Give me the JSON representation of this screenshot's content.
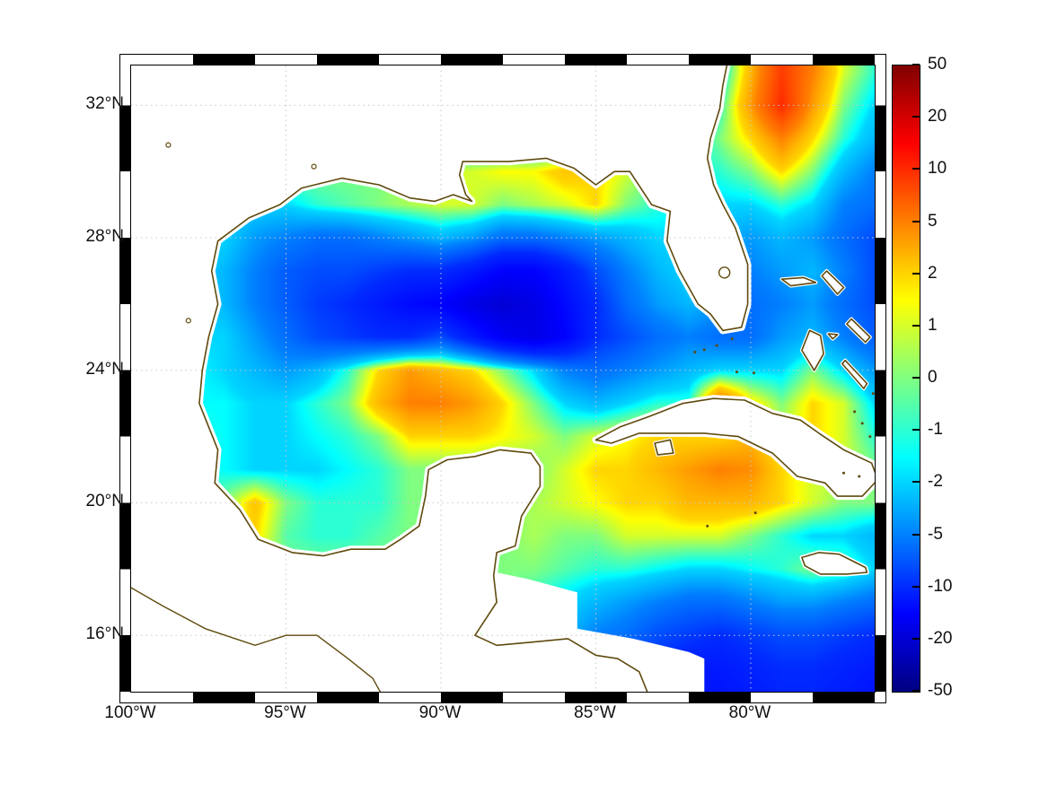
{
  "figure": {
    "background": "#ffffff",
    "coastline_color": "#5f4a0d",
    "grid_color": "#c8c8c8"
  },
  "chart_data": {
    "type": "heatmap",
    "projection": "lon-lat",
    "lon_range": [
      -100,
      -76
    ],
    "lat_range": [
      14.3,
      33.2
    ],
    "x_ticks": [
      {
        "label": "100°W",
        "lon": -100
      },
      {
        "label": "95°W",
        "lon": -95
      },
      {
        "label": "90°W",
        "lon": -90
      },
      {
        "label": "85°W",
        "lon": -85
      },
      {
        "label": "80°W",
        "lon": -80
      }
    ],
    "y_ticks": [
      {
        "label": "32°N",
        "lat": 32
      },
      {
        "label": "28°N",
        "lat": 28
      },
      {
        "label": "24°N",
        "lat": 24
      },
      {
        "label": "20°N",
        "lat": 20
      },
      {
        "label": "16°N",
        "lat": 16
      }
    ],
    "gridlines": {
      "lons": [
        -95,
        -90,
        -85,
        -80
      ],
      "lats": [
        16,
        20,
        24,
        28,
        32
      ]
    },
    "colorbar": {
      "colormap": "jet",
      "values": [
        50,
        20,
        10,
        5,
        2,
        1,
        0,
        -1,
        -2,
        -5,
        -10,
        -20,
        -50
      ],
      "labels": [
        "50",
        "20",
        "10",
        "5",
        "2",
        "1",
        "0",
        "-1",
        "-2",
        "-5",
        "-10",
        "-20",
        "-50"
      ]
    },
    "grid": {
      "lon_start": -100,
      "lon_step": 1,
      "lat_start": 33,
      "lat_step": -1,
      "values": [
        [
          -3,
          -3,
          -3,
          -3,
          -3,
          -3,
          -3,
          -3,
          -3,
          -3,
          -3,
          -3,
          -3,
          -3,
          -3,
          -3,
          -3,
          -3,
          -2,
          -2,
          3,
          9,
          5,
          1,
          -1
        ],
        [
          -3,
          -3,
          -3,
          -3,
          -3,
          -3,
          -3,
          -3,
          -3,
          -3,
          -3,
          -3,
          -3,
          -3,
          -3,
          -3,
          -3,
          -3,
          -2,
          -1,
          4,
          10,
          4,
          0,
          -2
        ],
        [
          -3,
          -3,
          -3,
          -3,
          -3,
          -3,
          -3,
          -3,
          -3,
          -3,
          -3,
          -3,
          -3,
          -3,
          -3,
          -3,
          -3,
          -3,
          -2,
          0,
          2,
          5,
          2,
          -1,
          -3
        ],
        [
          0,
          0,
          0,
          0,
          0,
          0,
          0,
          0,
          0,
          1,
          1,
          1,
          1.5,
          1.5,
          2.5,
          2,
          1,
          0,
          -1,
          -1,
          0,
          2,
          0,
          -3,
          -5
        ],
        [
          -2,
          -2,
          -2,
          -2,
          -2,
          -2,
          -1,
          -0.5,
          0,
          0.5,
          1,
          1,
          0,
          0.5,
          1,
          2,
          0,
          -1,
          -2,
          -2,
          -2,
          -1,
          -2,
          -5,
          -6
        ],
        [
          -2,
          -2,
          -2,
          -2,
          -4,
          -5,
          -6,
          -6,
          -5,
          -4,
          -3,
          -4,
          -6,
          -6,
          -5,
          -4,
          -3,
          -2,
          -2,
          -3,
          -4,
          -3,
          -4,
          -6,
          -8
        ],
        [
          -2,
          -2,
          -2,
          -3,
          -5,
          -7,
          -8,
          -8,
          -9,
          -10,
          -10,
          -12,
          -15,
          -15,
          -12,
          -8,
          -5,
          -3,
          -2,
          -3,
          -5,
          -4,
          -3,
          -5,
          -8
        ],
        [
          -2,
          -2,
          -2,
          -3,
          -5,
          -7,
          -9,
          -10,
          -12,
          -14,
          -15,
          -18,
          -20,
          -18,
          -14,
          -10,
          -6,
          -4,
          -3,
          -4,
          -6,
          -5,
          -4,
          -6,
          -8
        ],
        [
          -1,
          -1,
          -2,
          -2,
          -4,
          -6,
          -8,
          -9,
          -10,
          -10,
          -8,
          -12,
          -16,
          -18,
          -15,
          -10,
          -8,
          -6,
          -5,
          -6,
          -6,
          -4,
          -3,
          -5,
          -7
        ],
        [
          -1,
          -1,
          -1.5,
          -2,
          -3,
          -4,
          -3,
          -1,
          2,
          4,
          3,
          2,
          0,
          -2,
          -5,
          -6,
          -5,
          -4,
          -3,
          -2,
          -2,
          -2,
          0,
          -2,
          -4
        ],
        [
          -1,
          -1,
          -1.5,
          -1.5,
          -2,
          -2,
          -1,
          0,
          3,
          5,
          5,
          4,
          2,
          0,
          -2,
          -3,
          -2,
          -1,
          -1,
          6,
          2,
          0,
          2,
          1,
          -2
        ],
        [
          -1,
          -1,
          -1,
          -1.5,
          -2,
          -2,
          -1.5,
          -1,
          0,
          2,
          2,
          2,
          1.5,
          1,
          0,
          1,
          1.5,
          2,
          2,
          2,
          3,
          1,
          2,
          1,
          -1
        ],
        [
          -0.5,
          -1,
          -1,
          -1.5,
          -2,
          -2,
          -2,
          -1.5,
          -1,
          0,
          0,
          0,
          0,
          0,
          1,
          2,
          2,
          3,
          4,
          5,
          4.5,
          2,
          1,
          1,
          0
        ],
        [
          0,
          0,
          0,
          0,
          2.5,
          0,
          -1,
          -1,
          -1,
          0,
          0,
          0,
          0,
          0.5,
          1,
          1.5,
          2,
          2,
          3,
          3,
          3,
          2,
          1,
          0,
          0
        ],
        [
          0,
          0,
          0,
          1,
          2,
          -0.5,
          -1,
          -1,
          -0.5,
          0,
          0,
          0,
          0,
          0.5,
          0,
          0,
          1,
          1,
          1,
          1,
          0,
          -1,
          -2,
          -2,
          -3
        ],
        [
          0,
          0,
          0,
          0,
          0,
          0,
          0,
          0,
          0,
          0,
          0,
          0,
          0,
          0,
          -0.5,
          -1,
          -1,
          -1.5,
          -2,
          -2,
          -1.5,
          -1,
          0,
          -0.5,
          -2
        ],
        [
          0,
          0,
          0,
          0,
          0,
          0,
          0,
          0,
          0,
          0,
          0,
          0,
          0,
          -1,
          -2,
          -3,
          -4,
          -5,
          -6,
          -6,
          -5,
          -4,
          -4,
          -5,
          -6
        ],
        [
          0,
          0,
          0,
          0,
          0,
          0,
          0,
          0,
          0,
          0,
          0,
          0,
          0,
          -2,
          -3,
          -5,
          -6,
          -8,
          -9,
          -10,
          -9,
          -8,
          -8,
          -9,
          -10
        ],
        [
          0,
          0,
          0,
          0,
          0,
          0,
          0,
          0,
          0,
          0,
          0,
          0,
          0,
          -3,
          -4,
          -6,
          -8,
          -10,
          -12,
          -12,
          -11,
          -10,
          -10,
          -11,
          -12
        ],
        [
          0,
          0,
          0,
          0,
          0,
          0,
          0,
          0,
          0,
          0,
          0,
          0,
          0,
          -4,
          -5,
          -7,
          -9,
          -11,
          -13,
          -13,
          -12,
          -11,
          -11,
          -12,
          -13
        ]
      ]
    }
  },
  "map": {
    "coastlines": {
      "no_data_region": [
        [
          -88.7,
          18.0
        ],
        [
          -87.2,
          17.7
        ],
        [
          -85.6,
          17.3
        ],
        [
          -85.6,
          16.2
        ],
        [
          -83.8,
          15.9
        ],
        [
          -82.0,
          15.5
        ],
        [
          -81.5,
          15.3
        ],
        [
          -81.5,
          14.2
        ],
        [
          -88.7,
          14.2
        ]
      ],
      "mainland": [
        [
          -80.75,
          33.3
        ],
        [
          -80.9,
          32.6
        ],
        [
          -81.0,
          31.9
        ],
        [
          -81.3,
          31.0
        ],
        [
          -81.4,
          30.4
        ],
        [
          -81.2,
          29.6
        ],
        [
          -80.9,
          29.0
        ],
        [
          -80.5,
          28.3
        ],
        [
          -80.1,
          27.2
        ],
        [
          -80.1,
          26.0
        ],
        [
          -80.3,
          25.3
        ],
        [
          -80.9,
          25.2
        ],
        [
          -81.3,
          25.7
        ],
        [
          -81.7,
          26.0
        ],
        [
          -82.0,
          26.5
        ],
        [
          -82.3,
          27.0
        ],
        [
          -82.7,
          27.9
        ],
        [
          -82.6,
          28.8
        ],
        [
          -83.2,
          29.0
        ],
        [
          -83.9,
          30.0
        ],
        [
          -84.4,
          30.0
        ],
        [
          -85.0,
          29.6
        ],
        [
          -85.7,
          30.1
        ],
        [
          -86.6,
          30.4
        ],
        [
          -87.8,
          30.3
        ],
        [
          -88.5,
          30.3
        ],
        [
          -89.3,
          30.3
        ],
        [
          -89.4,
          29.9
        ],
        [
          -89.2,
          29.3
        ],
        [
          -89.0,
          29.1
        ],
        [
          -89.6,
          29.3
        ],
        [
          -90.2,
          29.1
        ],
        [
          -91.0,
          29.2
        ],
        [
          -92.0,
          29.6
        ],
        [
          -93.2,
          29.8
        ],
        [
          -94.5,
          29.5
        ],
        [
          -95.2,
          29.0
        ],
        [
          -96.2,
          28.6
        ],
        [
          -97.2,
          27.9
        ],
        [
          -97.4,
          27.0
        ],
        [
          -97.2,
          26.0
        ],
        [
          -97.5,
          25.0
        ],
        [
          -97.7,
          24.0
        ],
        [
          -97.8,
          23.0
        ],
        [
          -97.2,
          21.6
        ],
        [
          -97.3,
          20.6
        ],
        [
          -96.5,
          19.8
        ],
        [
          -95.9,
          18.9
        ],
        [
          -94.8,
          18.5
        ],
        [
          -93.8,
          18.4
        ],
        [
          -92.9,
          18.6
        ],
        [
          -91.8,
          18.6
        ],
        [
          -91.3,
          18.9
        ],
        [
          -90.7,
          19.3
        ],
        [
          -90.5,
          20.2
        ],
        [
          -90.4,
          21.0
        ],
        [
          -89.8,
          21.3
        ],
        [
          -88.9,
          21.4
        ],
        [
          -88.1,
          21.6
        ],
        [
          -87.1,
          21.5
        ],
        [
          -86.8,
          21.1
        ],
        [
          -86.8,
          20.5
        ],
        [
          -87.4,
          19.6
        ],
        [
          -87.6,
          18.7
        ],
        [
          -88.2,
          18.5
        ],
        [
          -88.3,
          17.8
        ],
        [
          -88.2,
          17.0
        ],
        [
          -88.9,
          16.0
        ],
        [
          -88.2,
          15.7
        ],
        [
          -87.0,
          15.8
        ],
        [
          -85.9,
          15.9
        ],
        [
          -85.0,
          15.4
        ],
        [
          -84.3,
          15.3
        ],
        [
          -83.6,
          14.9
        ],
        [
          -83.3,
          14.2
        ],
        [
          -100.3,
          14.2
        ],
        [
          -100.3,
          33.3
        ]
      ],
      "pacific_coast": [
        [
          -100.3,
          17.6
        ],
        [
          -99.0,
          16.9
        ],
        [
          -97.6,
          16.2
        ],
        [
          -96.0,
          15.7
        ],
        [
          -95.0,
          16.0
        ],
        [
          -94.0,
          16.0
        ],
        [
          -93.0,
          15.3
        ],
        [
          -92.2,
          14.7
        ],
        [
          -91.9,
          14.2
        ]
      ],
      "cuba": [
        [
          -85.0,
          21.9
        ],
        [
          -84.2,
          22.3
        ],
        [
          -83.3,
          22.6
        ],
        [
          -82.2,
          23.0
        ],
        [
          -81.2,
          23.15
        ],
        [
          -80.2,
          23.1
        ],
        [
          -79.3,
          22.7
        ],
        [
          -78.4,
          22.5
        ],
        [
          -77.8,
          22.1
        ],
        [
          -77.0,
          21.6
        ],
        [
          -76.1,
          21.2
        ],
        [
          -75.9,
          20.7
        ],
        [
          -76.4,
          20.2
        ],
        [
          -77.2,
          20.2
        ],
        [
          -77.6,
          20.6
        ],
        [
          -78.5,
          20.8
        ],
        [
          -79.3,
          21.5
        ],
        [
          -80.4,
          22.0
        ],
        [
          -81.5,
          22.1
        ],
        [
          -82.6,
          22.1
        ],
        [
          -83.6,
          22.1
        ],
        [
          -84.5,
          21.8
        ]
      ],
      "isla_juventud": [
        [
          -83.1,
          21.8
        ],
        [
          -82.6,
          21.9
        ],
        [
          -82.5,
          21.5
        ],
        [
          -83.0,
          21.45
        ]
      ],
      "jamaica": [
        [
          -78.35,
          18.35
        ],
        [
          -77.8,
          18.5
        ],
        [
          -77.15,
          18.45
        ],
        [
          -76.3,
          18.05
        ],
        [
          -76.25,
          17.9
        ],
        [
          -76.9,
          17.85
        ],
        [
          -77.75,
          17.85
        ],
        [
          -78.25,
          18.1
        ]
      ],
      "bahamas": {
        "grand_bahama": [
          [
            -79.0,
            26.75
          ],
          [
            -78.3,
            26.8
          ],
          [
            -77.9,
            26.65
          ],
          [
            -78.7,
            26.55
          ]
        ],
        "abaco": [
          [
            -77.55,
            27.0
          ],
          [
            -77.0,
            26.5
          ],
          [
            -77.2,
            26.3
          ],
          [
            -77.7,
            26.85
          ]
        ],
        "andros": [
          [
            -78.1,
            25.2
          ],
          [
            -77.75,
            25.05
          ],
          [
            -77.65,
            24.5
          ],
          [
            -77.95,
            24.0
          ],
          [
            -78.35,
            24.6
          ]
        ],
        "eleuthera": [
          [
            -76.75,
            25.55
          ],
          [
            -76.15,
            25.0
          ],
          [
            -76.3,
            24.85
          ],
          [
            -76.9,
            25.4
          ]
        ],
        "exuma": [
          [
            -76.95,
            24.3
          ],
          [
            -76.25,
            23.6
          ],
          [
            -76.35,
            23.45
          ],
          [
            -77.05,
            24.2
          ]
        ],
        "new_providence": [
          [
            -77.5,
            25.1
          ],
          [
            -77.2,
            25.08
          ],
          [
            -77.35,
            24.95
          ]
        ]
      },
      "island_dots": [
        [
          -76.4,
          22.4
        ],
        [
          -76.15,
          22.0
        ],
        [
          -76.65,
          22.75
        ],
        [
          -79.9,
          23.92
        ],
        [
          -80.45,
          23.95
        ],
        [
          -81.4,
          19.3
        ],
        [
          -79.85,
          19.7
        ],
        [
          -80.6,
          24.95
        ],
        [
          -81.1,
          24.75
        ],
        [
          -81.5,
          24.62
        ],
        [
          -81.8,
          24.55
        ],
        [
          -76.05,
          23.3
        ],
        [
          -77.0,
          20.9
        ],
        [
          -76.5,
          20.8
        ]
      ],
      "lakes": {
        "okeechobee": [
          -80.85,
          26.95
        ],
        "small_lakes": [
          [
            -98.8,
            30.8
          ],
          [
            -94.1,
            30.15
          ],
          [
            -98.15,
            25.5
          ]
        ]
      }
    }
  }
}
